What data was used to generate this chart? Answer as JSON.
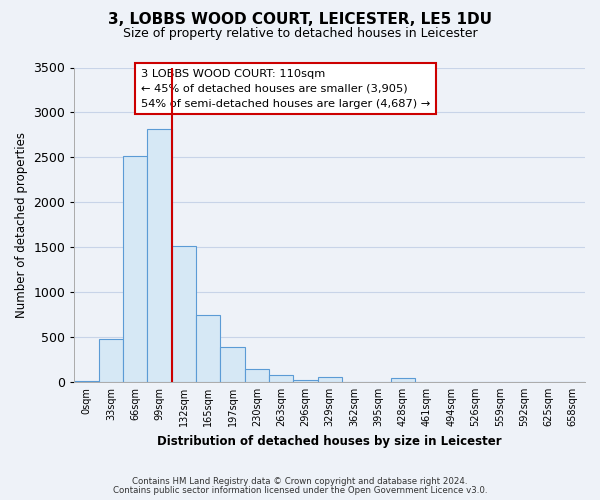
{
  "title": "3, LOBBS WOOD COURT, LEICESTER, LE5 1DU",
  "subtitle": "Size of property relative to detached houses in Leicester",
  "xlabel": "Distribution of detached houses by size in Leicester",
  "ylabel": "Number of detached properties",
  "bar_labels": [
    "0sqm",
    "33sqm",
    "66sqm",
    "99sqm",
    "132sqm",
    "165sqm",
    "197sqm",
    "230sqm",
    "263sqm",
    "296sqm",
    "329sqm",
    "362sqm",
    "395sqm",
    "428sqm",
    "461sqm",
    "494sqm",
    "526sqm",
    "559sqm",
    "592sqm",
    "625sqm",
    "658sqm"
  ],
  "bar_heights": [
    15,
    480,
    2510,
    2810,
    1510,
    750,
    390,
    145,
    75,
    20,
    55,
    0,
    0,
    40,
    0,
    0,
    0,
    0,
    0,
    0,
    0
  ],
  "bar_color": "#d6e8f5",
  "bar_edge_color": "#5b9bd5",
  "vline_color": "#cc0000",
  "ylim": [
    0,
    3500
  ],
  "yticks": [
    0,
    500,
    1000,
    1500,
    2000,
    2500,
    3000,
    3500
  ],
  "annotation_title": "3 LOBBS WOOD COURT: 110sqm",
  "annotation_line1": "← 45% of detached houses are smaller (3,905)",
  "annotation_line2": "54% of semi-detached houses are larger (4,687) →",
  "footer1": "Contains HM Land Registry data © Crown copyright and database right 2024.",
  "footer2": "Contains public sector information licensed under the Open Government Licence v3.0.",
  "background_color": "#eef2f8",
  "plot_background_color": "#eef2f8",
  "grid_color": "#c8d4e8"
}
